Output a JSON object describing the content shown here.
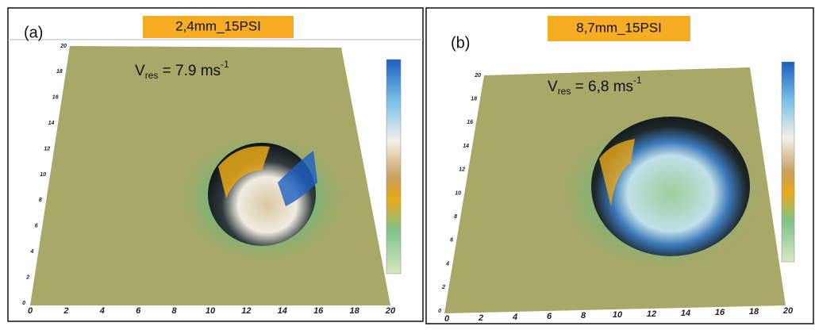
{
  "panels": [
    {
      "label": "(a)",
      "title": "2,4mm_15PSI",
      "annotation": {
        "symbol": "V",
        "subscript": "res",
        "text": " = 7.9 ms",
        "superscript": "-1"
      },
      "x_ticks": [
        0,
        2,
        4,
        6,
        8,
        10,
        12,
        14,
        16,
        18,
        20
      ],
      "y_ticks": [
        0,
        2,
        4,
        6,
        8,
        10,
        12,
        14,
        16,
        18,
        20
      ]
    },
    {
      "label": "(b)",
      "title": "8,7mm_15PSI",
      "annotation": {
        "symbol": "V",
        "subscript": "res",
        "text": " = 6,8 ms",
        "superscript": "-1"
      },
      "x_ticks": [
        0,
        2,
        4,
        6,
        8,
        10,
        12,
        14,
        16,
        18,
        20
      ],
      "y_ticks": [
        0,
        2,
        4,
        6,
        8,
        10,
        12,
        14,
        16,
        18,
        20
      ]
    }
  ]
}
